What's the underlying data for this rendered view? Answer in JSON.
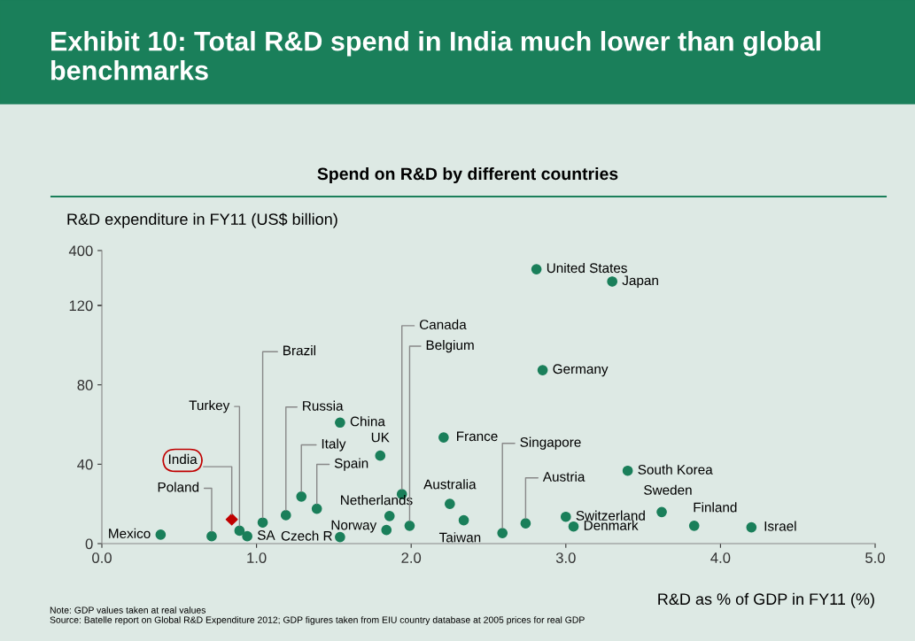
{
  "chart_data": [
    {
      "type": "scatter",
      "title": "Exhibit 10: Total R&D spend in India much lower than global benchmarks",
      "subtitle": "Spend on R&D by different countries",
      "ylabel": "R&D expenditure in FY11 (US$ billion)",
      "xlim": [
        0,
        5
      ],
      "ylim": [
        120,
        400
      ],
      "yticks": [
        120,
        400
      ],
      "tick_labels": "y",
      "grid": false,
      "series": [
        {
          "color": "#1a7f5a",
          "marker": "circle",
          "x": [
            2.81,
            3.3
          ],
          "values": [
            305,
            242
          ]
        }
      ],
      "annotations": [
        {
          "text": "United States",
          "x": 2.81,
          "y": 305
        },
        {
          "text": "Japan",
          "x": 3.3,
          "y": 242
        }
      ]
    },
    {
      "type": "scatter",
      "xlabel": "R&D as % of GDP in FY11 (%)",
      "xlim": [
        0,
        5
      ],
      "ylim": [
        0,
        120
      ],
      "xticks": [
        {
          "value": 0,
          "label": "0.0"
        },
        {
          "value": 1,
          "label": "1.0"
        },
        {
          "value": 2,
          "label": "2.0"
        },
        {
          "value": 3,
          "label": "3.0"
        },
        {
          "value": 4,
          "label": "4.0"
        },
        {
          "value": 5,
          "label": "5.0"
        }
      ],
      "yticks": [
        0,
        40,
        80,
        {
          "value": 120,
          "label": null
        }
      ],
      "grid": false,
      "series": [
        {
          "color": "#1a7f5a",
          "marker": "circle",
          "x": [
            0.38,
            0.71,
            0.89,
            0.94,
            1.04,
            1.19,
            1.29,
            1.39,
            1.54,
            1.54,
            1.8,
            1.86,
            1.84,
            1.94,
            1.99,
            2.21,
            2.25,
            2.34,
            2.59,
            2.74,
            2.85,
            3.0,
            3.05,
            3.4,
            3.62,
            3.83,
            4.2
          ],
          "values": [
            4.5,
            3.7,
            6.5,
            3.7,
            10.6,
            14.3,
            23.7,
            17.6,
            61,
            3.3,
            44.3,
            13.9,
            6.9,
            24.9,
            9.0,
            53.5,
            20,
            11.8,
            5.3,
            10.2,
            87.4,
            13.5,
            8.6,
            36.7,
            15.9,
            9.0,
            8.2
          ]
        },
        {
          "color": "#c00000",
          "marker": "diamond",
          "x": [
            0.84
          ],
          "values": [
            12.2
          ]
        }
      ],
      "annotations": [
        {
          "text": "Mexico",
          "x": 0.38,
          "y": 4.5
        },
        {
          "text": "Poland",
          "x": 0.71,
          "y": 3.7
        },
        {
          "text": "Turkey",
          "x": 0.89,
          "y": 6.5
        },
        {
          "text": "SA",
          "x": 0.94,
          "y": 3.7
        },
        {
          "text": "Brazil",
          "x": 1.04,
          "y": 10.6
        },
        {
          "text": "Russia",
          "x": 1.19,
          "y": 14.3
        },
        {
          "text": "Italy",
          "x": 1.29,
          "y": 23.7
        },
        {
          "text": "Spain",
          "x": 1.39,
          "y": 17.6
        },
        {
          "text": "China",
          "x": 1.54,
          "y": 61
        },
        {
          "text": "Czech R",
          "x": 1.54,
          "y": 3.3
        },
        {
          "text": "UK",
          "x": 1.8,
          "y": 44.3
        },
        {
          "text": "Netherlands",
          "x": 1.86,
          "y": 13.9
        },
        {
          "text": "Norway",
          "x": 1.84,
          "y": 6.9
        },
        {
          "text": "Canada",
          "x": 1.94,
          "y": 24.9
        },
        {
          "text": "Belgium",
          "x": 1.99,
          "y": 9.0
        },
        {
          "text": "France",
          "x": 2.21,
          "y": 53.5
        },
        {
          "text": "Australia",
          "x": 2.25,
          "y": 20
        },
        {
          "text": "Taiwan",
          "x": 2.34,
          "y": 11.8
        },
        {
          "text": "Singapore",
          "x": 2.59,
          "y": 5.3
        },
        {
          "text": "Austria",
          "x": 2.74,
          "y": 10.2
        },
        {
          "text": "Germany",
          "x": 2.85,
          "y": 87.4
        },
        {
          "text": "Switzerland",
          "x": 3.0,
          "y": 13.5
        },
        {
          "text": "Denmark",
          "x": 3.05,
          "y": 8.6
        },
        {
          "text": "South Korea",
          "x": 3.4,
          "y": 36.7
        },
        {
          "text": "Sweden",
          "x": 3.62,
          "y": 15.9
        },
        {
          "text": "Finland",
          "x": 3.83,
          "y": 9.0
        },
        {
          "text": "Israel",
          "x": 4.2,
          "y": 8.2
        },
        {
          "text": "India",
          "x": 0.84,
          "y": 12.2
        },
        "Note: GDP values taken at real values",
        "Source: Batelle report on Global R&D Expenditure 2012; GDP figures taken from EIU country database at 2005 prices for real GDP"
      ]
    }
  ]
}
